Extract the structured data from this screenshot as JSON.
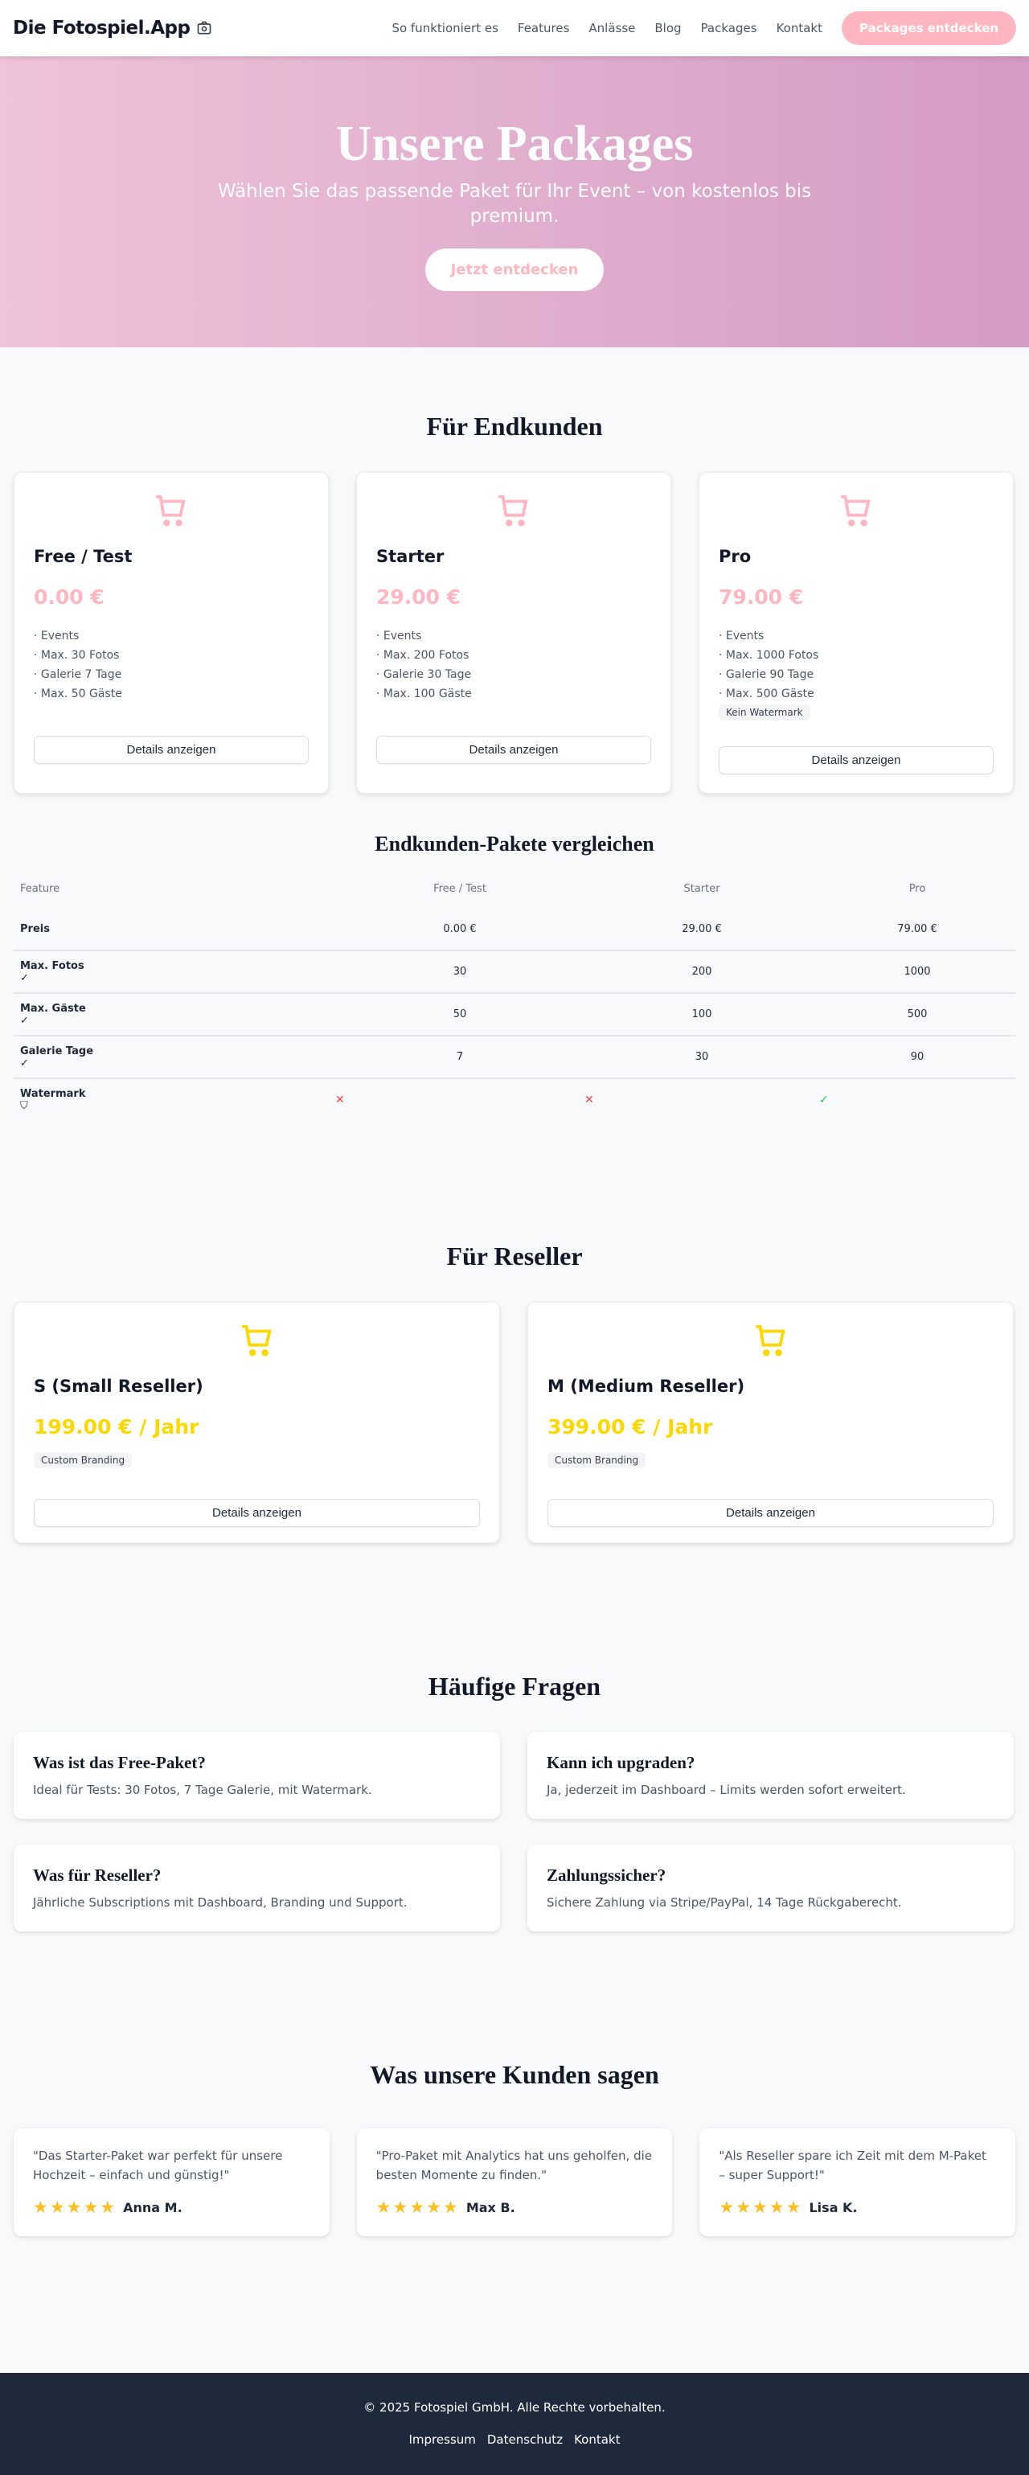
{
  "nav": {
    "logo": "Die Fotospiel.App",
    "links": [
      "So funktioniert es",
      "Features",
      "Anlässe",
      "Blog",
      "Packages",
      "Kontakt"
    ],
    "cta": "Packages entdecken"
  },
  "hero": {
    "title": "Unsere Packages",
    "subtitle": "Wählen Sie das passende Paket für Ihr Event – von kostenlos bis premium.",
    "button": "Jetzt entdecken"
  },
  "endkunden": {
    "title": "Für Endkunden",
    "details_label": "Details anzeigen",
    "accent": "#ffb6c1",
    "packages": [
      {
        "name": "Free / Test",
        "price": "0.00 €",
        "features": [
          "· Events",
          "· Max. 30 Fotos",
          "· Galerie 7 Tage",
          "· Max. 50 Gäste"
        ]
      },
      {
        "name": "Starter",
        "price": "29.00 €",
        "features": [
          "· Events",
          "· Max. 200 Fotos",
          "· Galerie 30 Tage",
          "· Max. 100 Gäste"
        ]
      },
      {
        "name": "Pro",
        "price": "79.00 €",
        "features": [
          "· Events",
          "· Max. 1000 Fotos",
          "· Galerie 90 Tage",
          "· Max. 500 Gäste"
        ],
        "tag": "Kein Watermark"
      }
    ]
  },
  "compare": {
    "title": "Endkunden-Pakete vergleichen",
    "headers": [
      "Feature",
      "Free / Test",
      "Starter",
      "Pro"
    ],
    "rows": [
      {
        "feature": "Preis",
        "icon": "",
        "values": [
          "0.00 €",
          "29.00 €",
          "79.00 €"
        ]
      },
      {
        "feature": "Max. Fotos",
        "icon": "✓",
        "values": [
          "30",
          "200",
          "1000"
        ]
      },
      {
        "feature": "Max. Gäste",
        "icon": "✓",
        "values": [
          "50",
          "100",
          "500"
        ]
      },
      {
        "feature": "Galerie Tage",
        "icon": "✓",
        "values": [
          "7",
          "30",
          "90"
        ]
      }
    ],
    "watermark": {
      "feature": "Watermark",
      "values": [
        "✕",
        "✕",
        "✓"
      ]
    }
  },
  "reseller": {
    "title": "Für Reseller",
    "accent": "#ffd700",
    "details_label": "Details anzeigen",
    "packages": [
      {
        "name": "S (Small Reseller)",
        "price": "199.00 € / Jahr",
        "tag": "Custom Branding"
      },
      {
        "name": "M (Medium Reseller)",
        "price": "399.00 € / Jahr",
        "tag": "Custom Branding"
      }
    ]
  },
  "faq": {
    "title": "Häufige Fragen",
    "items": [
      {
        "q": "Was ist das Free-Paket?",
        "a": "Ideal für Tests: 30 Fotos, 7 Tage Galerie, mit Watermark."
      },
      {
        "q": "Kann ich upgraden?",
        "a": "Ja, jederzeit im Dashboard – Limits werden sofort erweitert."
      },
      {
        "q": "Was für Reseller?",
        "a": "Jährliche Subscriptions mit Dashboard, Branding und Support."
      },
      {
        "q": "Zahlungssicher?",
        "a": "Sichere Zahlung via Stripe/PayPal, 14 Tage Rückgaberecht."
      }
    ]
  },
  "testimonials": {
    "title": "Was unsere Kunden sagen",
    "items": [
      {
        "text": "\"Das Starter-Paket war perfekt für unsere Hochzeit – einfach und günstig!\"",
        "name": "Anna M.",
        "rating": 5
      },
      {
        "text": "\"Pro-Paket mit Analytics hat uns geholfen, die besten Momente zu finden.\"",
        "name": "Max B.",
        "rating": 5
      },
      {
        "text": "\"Als Reseller spare ich Zeit mit dem M-Paket – super Support!\"",
        "name": "Lisa K.",
        "rating": 5
      }
    ]
  },
  "footer": {
    "copyright": "© 2025 Fotospiel GmbH. Alle Rechte vorbehalten.",
    "links": [
      "Impressum",
      "Datenschutz",
      "Kontakt"
    ]
  }
}
